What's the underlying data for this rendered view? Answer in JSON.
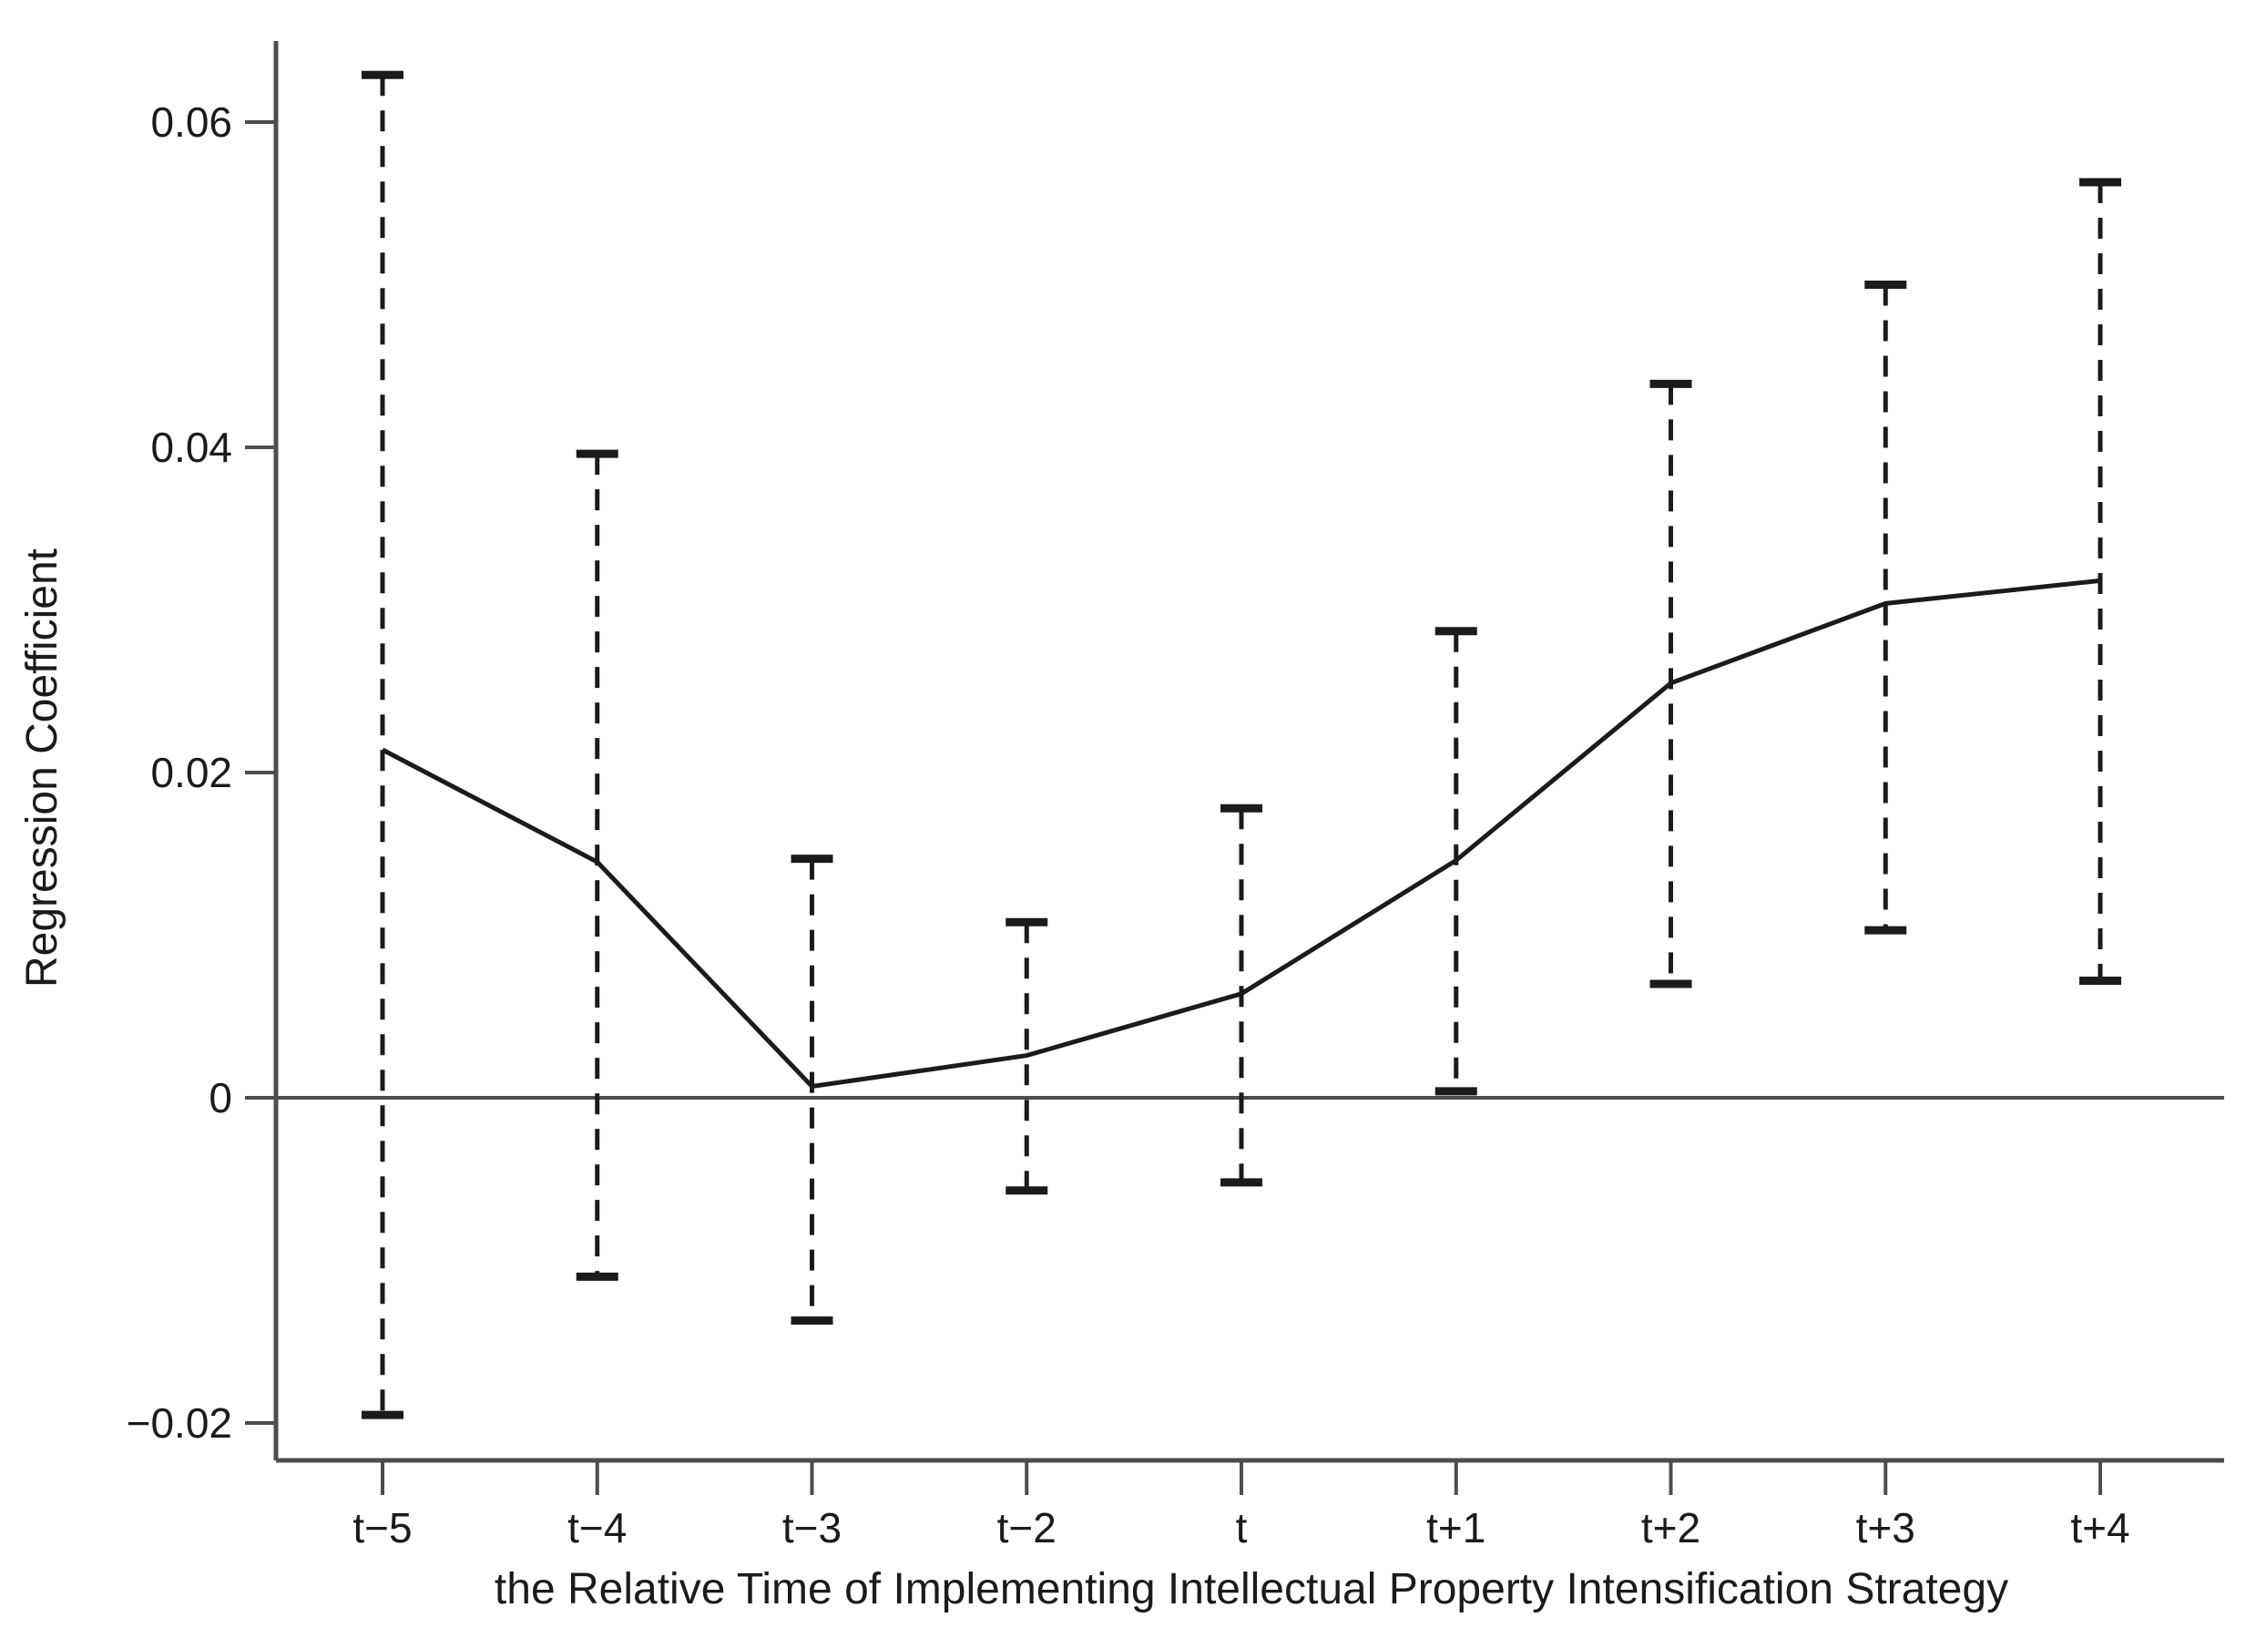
{
  "figure": {
    "background_color": "#ffffff",
    "data_line_color": "#1b1b1b",
    "axis_line_color": "#4d4d4d",
    "text_color": "#1b1b1b"
  },
  "chart_data": {
    "type": "line",
    "subtype": "event-study with dashed error bars",
    "title": "",
    "xlabel": "the Relative Time of Implementing Intellectual Property Intensification Strategy",
    "ylabel": "Regression Coefficient",
    "categories": [
      "t−5",
      "t−4",
      "t−3",
      "t−2",
      "t",
      "t+1",
      "t+2",
      "t+3",
      "t+4"
    ],
    "series": [
      {
        "name": "coefficient",
        "values": [
          0.0214,
          0.0145,
          0.0007,
          0.0026,
          0.0064,
          0.0146,
          0.0255,
          0.0304,
          0.0318
        ]
      },
      {
        "name": "ci_lower",
        "values": [
          -0.0195,
          -0.011,
          -0.0137,
          -0.0057,
          -0.0052,
          0.0004,
          0.007,
          0.0103,
          0.0072
        ]
      },
      {
        "name": "ci_upper",
        "values": [
          0.0629,
          0.0396,
          0.0147,
          0.0108,
          0.0178,
          0.0287,
          0.0439,
          0.05,
          0.0563
        ]
      }
    ],
    "yticks": [
      -0.02,
      0,
      0.02,
      0.04,
      0.06
    ],
    "ytick_labels": [
      "−0.02",
      "0",
      "0.02",
      "0.04",
      "0.06"
    ],
    "ylim": [
      -0.0223,
      0.0647
    ],
    "zero_reference_line": true,
    "grid": false,
    "legend_position": "none",
    "error_bar_style": "dashed-with-caps"
  }
}
